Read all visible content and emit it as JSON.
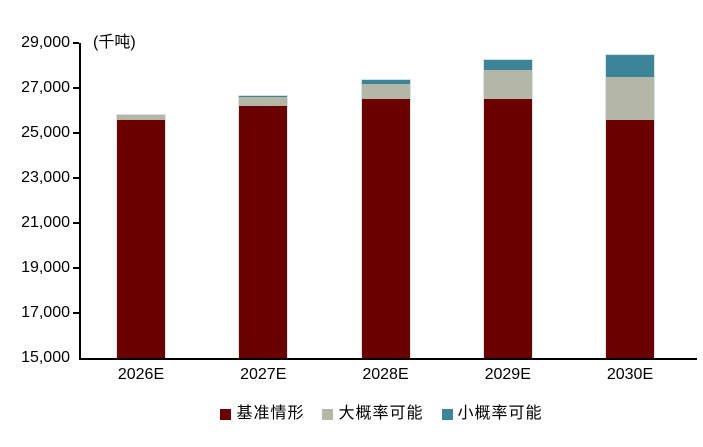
{
  "colors": {
    "background": "#ffffff",
    "axis": "#000000",
    "text": "#000000",
    "segment_border": "#d6e3ea",
    "series_maroon": "#6b0000",
    "series_gray": "#b5b7a6",
    "series_teal": "#3c8599"
  },
  "chart_data": {
    "type": "bar",
    "stacked": true,
    "title": "",
    "unit_label": "(千吨)",
    "categories": [
      "2026E",
      "2027E",
      "2028E",
      "2029E",
      "2030E"
    ],
    "series": [
      {
        "name": "基准情形",
        "color": "#6b0000",
        "role": "base-scenario",
        "values": [
          25600,
          26200,
          26500,
          26500,
          25600
        ]
      },
      {
        "name": "大概率可能",
        "color": "#b5b7a6",
        "role": "high-probability-increment",
        "values": [
          250,
          400,
          700,
          1300,
          1900
        ]
      },
      {
        "name": "小概率可能",
        "color": "#3c8599",
        "role": "low-probability-increment",
        "values": [
          0,
          100,
          200,
          500,
          1000
        ]
      }
    ],
    "value_encoding": "first series is absolute level; other series are stacked increments",
    "stack_totals": [
      25850,
      26700,
      27400,
      28300,
      28500
    ],
    "ylim": [
      15000,
      29000
    ],
    "ytick_step": 2000,
    "yticks": [
      {
        "value": 29000,
        "label": "29,000"
      },
      {
        "value": 27000,
        "label": "27,000"
      },
      {
        "value": 25000,
        "label": "25,000"
      },
      {
        "value": 23000,
        "label": "23,000"
      },
      {
        "value": 21000,
        "label": "21,000"
      },
      {
        "value": 19000,
        "label": "19,000"
      },
      {
        "value": 17000,
        "label": "17,000"
      },
      {
        "value": 15000,
        "label": "15,000"
      }
    ],
    "xlabel": "",
    "ylabel": "",
    "grid": false,
    "legend_position": "bottom"
  }
}
